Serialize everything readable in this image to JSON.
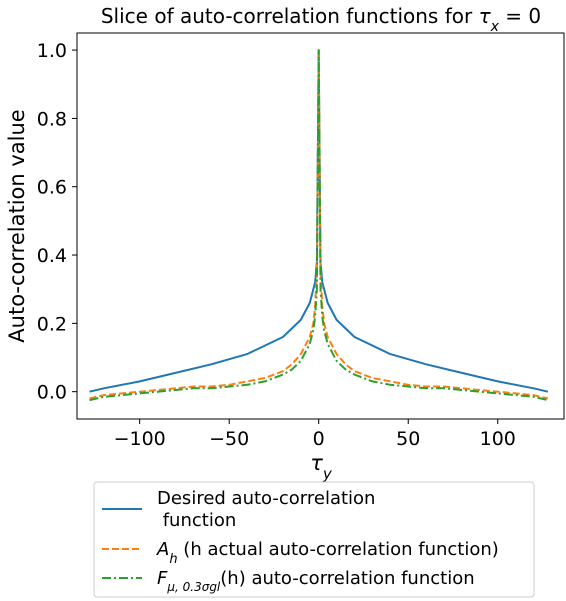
{
  "chart_data": {
    "type": "line",
    "title_text": "Slice of auto-correlation functions for ",
    "title_math_tau": "τ",
    "title_math_sub": "x",
    "title_math_tail": " = 0",
    "ylabel": "Auto-correlation value",
    "xlabel_tau": "τ",
    "xlabel_sub": "y",
    "xlim": [
      -135,
      137
    ],
    "ylim": [
      -0.08,
      1.05
    ],
    "x_ticks": [
      -100,
      -50,
      0,
      50,
      100
    ],
    "x_tick_labels": [
      "−100",
      "−50",
      "0",
      "50",
      "100"
    ],
    "y_ticks": [
      0.0,
      0.2,
      0.4,
      0.6,
      0.8,
      1.0
    ],
    "y_tick_labels": [
      "0.0",
      "0.2",
      "0.4",
      "0.6",
      "0.8",
      "1.0"
    ],
    "legend_position": "below",
    "series": [
      {
        "name_line1": "Desired auto-correlation",
        "name_line2": " function",
        "color": "#1f77b4",
        "style": "solid",
        "x": [
          -128,
          -120,
          -100,
          -80,
          -60,
          -40,
          -20,
          -10,
          -5,
          -2,
          -1,
          0,
          1,
          2,
          5,
          10,
          20,
          40,
          60,
          80,
          100,
          120,
          128
        ],
        "y": [
          0.0,
          0.01,
          0.03,
          0.055,
          0.08,
          0.11,
          0.16,
          0.21,
          0.26,
          0.32,
          0.38,
          1.0,
          0.38,
          0.32,
          0.26,
          0.21,
          0.16,
          0.11,
          0.08,
          0.055,
          0.03,
          0.01,
          0.0
        ]
      },
      {
        "name_prefix": "A",
        "name_sub": "h",
        "name_rest": " (h actual auto-correlation function)",
        "color": "#ff7f0e",
        "style": "dashed",
        "x": [
          -128,
          -120,
          -110,
          -100,
          -90,
          -80,
          -70,
          -60,
          -50,
          -40,
          -30,
          -20,
          -15,
          -10,
          -5,
          -3,
          -2,
          -1,
          0,
          1,
          2,
          3,
          5,
          10,
          15,
          20,
          30,
          40,
          50,
          60,
          70,
          80,
          90,
          100,
          110,
          120,
          128
        ],
        "y": [
          -0.02,
          -0.01,
          -0.005,
          0.0,
          0.005,
          0.01,
          0.015,
          0.015,
          0.02,
          0.03,
          0.04,
          0.06,
          0.08,
          0.11,
          0.16,
          0.2,
          0.25,
          0.35,
          1.0,
          0.35,
          0.25,
          0.2,
          0.16,
          0.11,
          0.08,
          0.06,
          0.04,
          0.03,
          0.02,
          0.015,
          0.015,
          0.01,
          0.005,
          0.0,
          -0.005,
          -0.01,
          -0.02
        ]
      },
      {
        "name_prefix": "F",
        "name_sub": "μ, 0.3σgl",
        "name_rest": "(h) auto-correlation function",
        "color": "#2ca02c",
        "style": "dashdot",
        "x": [
          -128,
          -120,
          -110,
          -100,
          -90,
          -80,
          -70,
          -60,
          -50,
          -40,
          -30,
          -20,
          -15,
          -10,
          -5,
          -3,
          -2,
          -1,
          0,
          1,
          2,
          3,
          5,
          10,
          15,
          20,
          30,
          40,
          50,
          60,
          70,
          80,
          90,
          100,
          110,
          120,
          128
        ],
        "y": [
          -0.025,
          -0.015,
          -0.01,
          -0.005,
          0.0,
          0.005,
          0.01,
          0.01,
          0.015,
          0.02,
          0.03,
          0.05,
          0.065,
          0.09,
          0.14,
          0.18,
          0.22,
          0.3,
          1.0,
          0.3,
          0.22,
          0.18,
          0.14,
          0.09,
          0.065,
          0.05,
          0.03,
          0.02,
          0.015,
          0.01,
          0.01,
          0.005,
          0.0,
          -0.005,
          -0.01,
          -0.015,
          -0.025
        ]
      }
    ]
  }
}
